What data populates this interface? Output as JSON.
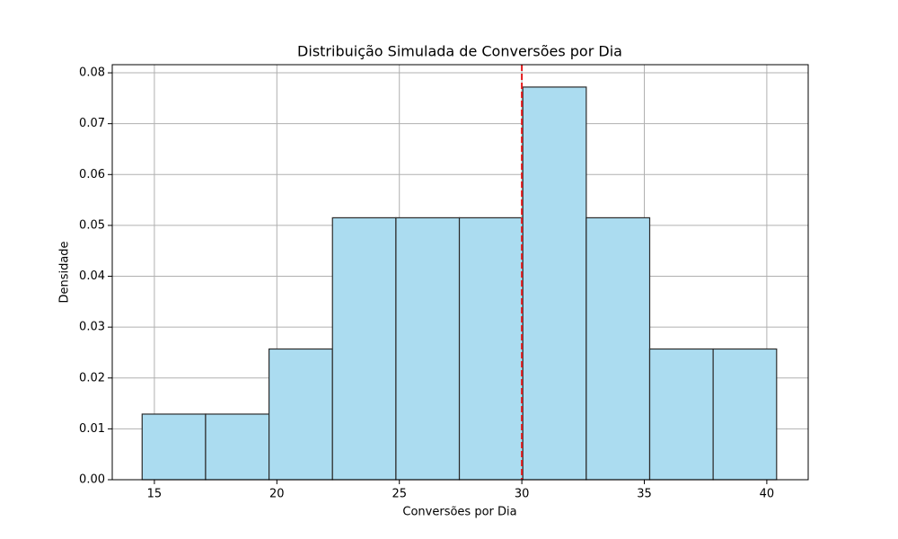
{
  "chart_data": {
    "type": "histogram",
    "title": "Distribuição Simulada de Conversões por Dia",
    "xlabel": "Conversões por Dia",
    "ylabel": "Densidade",
    "bins": [
      14.5,
      17.09,
      19.68,
      22.27,
      24.86,
      27.45,
      30.04,
      32.63,
      35.22,
      37.81,
      40.4
    ],
    "values": [
      0.0129,
      0.0129,
      0.0257,
      0.0515,
      0.0515,
      0.0515,
      0.0772,
      0.0515,
      0.0257,
      0.0257
    ],
    "color": "#abdcf0",
    "edgecolor": "#2b2b2b",
    "vline": {
      "x": 30.0,
      "color": "#e41a1c"
    },
    "xlim": [
      13.28,
      41.69
    ],
    "ylim": [
      0,
      0.0816
    ],
    "xticks": [
      15,
      20,
      25,
      30,
      35,
      40
    ],
    "yticks": [
      {
        "value": 0,
        "label": "0.00"
      },
      {
        "value": 0.01,
        "label": "0.01"
      },
      {
        "value": 0.02,
        "label": "0.02"
      },
      {
        "value": 0.03,
        "label": "0.03"
      },
      {
        "value": 0.04,
        "label": "0.04"
      },
      {
        "value": 0.05,
        "label": "0.05"
      },
      {
        "value": 0.06,
        "label": "0.06"
      },
      {
        "value": 0.07,
        "label": "0.07"
      },
      {
        "value": 0.08,
        "label": "0.08"
      }
    ],
    "grid": true
  }
}
